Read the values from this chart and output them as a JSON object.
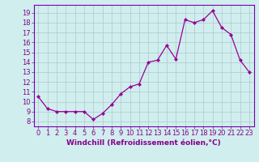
{
  "x": [
    0,
    1,
    2,
    3,
    4,
    5,
    6,
    7,
    8,
    9,
    10,
    11,
    12,
    13,
    14,
    15,
    16,
    17,
    18,
    19,
    20,
    21,
    22,
    23
  ],
  "y": [
    10.5,
    9.3,
    9.0,
    9.0,
    9.0,
    9.0,
    8.2,
    8.8,
    9.7,
    10.8,
    11.5,
    11.8,
    14.0,
    14.2,
    15.7,
    14.3,
    18.3,
    18.0,
    18.3,
    19.2,
    17.5,
    16.8,
    14.2,
    13.0
  ],
  "line_color": "#990099",
  "marker": "D",
  "marker_size": 2.0,
  "bg_color": "#d0eeee",
  "grid_color": "#b0c8cc",
  "xlabel": "Windchill (Refroidissement éolien,°C)",
  "xlabel_fontsize": 6.5,
  "xtick_labels": [
    "0",
    "1",
    "2",
    "3",
    "4",
    "5",
    "6",
    "7",
    "8",
    "9",
    "10",
    "11",
    "12",
    "13",
    "14",
    "15",
    "16",
    "17",
    "18",
    "19",
    "20",
    "21",
    "22",
    "23"
  ],
  "ytick_min": 8,
  "ytick_max": 19,
  "ylim": [
    7.5,
    19.8
  ],
  "xlim": [
    -0.5,
    23.5
  ],
  "tick_fontsize": 6,
  "label_color": "#880088",
  "spine_color": "#7700aa"
}
